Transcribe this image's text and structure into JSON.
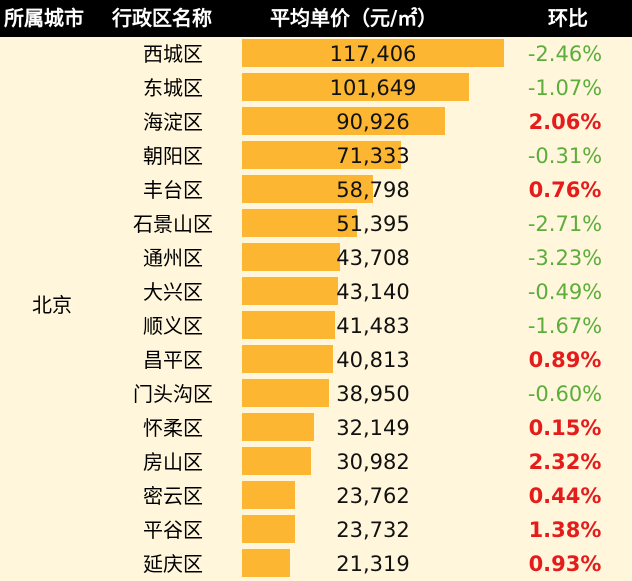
{
  "headers": {
    "city": "所属城市",
    "district": "行政区名称",
    "price": "平均单价（元/㎡）",
    "change": "环比"
  },
  "city": "北京",
  "colors": {
    "bar": "#fcb632",
    "negative": "#5cad3c",
    "positive": "#e51c1c",
    "header_bg": "#000000",
    "page_bg": "#fff6db"
  },
  "bar_max_value": 117406,
  "rows": [
    {
      "district": "西城区",
      "price_value": 117406,
      "price": "117,406",
      "change": "-2.46%",
      "change_value": -2.46
    },
    {
      "district": "东城区",
      "price_value": 101649,
      "price": "101,649",
      "change": "-1.07%",
      "change_value": -1.07
    },
    {
      "district": "海淀区",
      "price_value": 90926,
      "price": "90,926",
      "change": "2.06%",
      "change_value": 2.06
    },
    {
      "district": "朝阳区",
      "price_value": 71333,
      "price": "71,333",
      "change": "-0.31%",
      "change_value": -0.31
    },
    {
      "district": "丰台区",
      "price_value": 58798,
      "price": "58,798",
      "change": "0.76%",
      "change_value": 0.76
    },
    {
      "district": "石景山区",
      "price_value": 51395,
      "price": "51,395",
      "change": "-2.71%",
      "change_value": -2.71
    },
    {
      "district": "通州区",
      "price_value": 43708,
      "price": "43,708",
      "change": "-3.23%",
      "change_value": -3.23
    },
    {
      "district": "大兴区",
      "price_value": 43140,
      "price": "43,140",
      "change": "-0.49%",
      "change_value": -0.49
    },
    {
      "district": "顺义区",
      "price_value": 41483,
      "price": "41,483",
      "change": "-1.67%",
      "change_value": -1.67
    },
    {
      "district": "昌平区",
      "price_value": 40813,
      "price": "40,813",
      "change": "0.89%",
      "change_value": 0.89
    },
    {
      "district": "门头沟区",
      "price_value": 38950,
      "price": "38,950",
      "change": "-0.60%",
      "change_value": -0.6
    },
    {
      "district": "怀柔区",
      "price_value": 32149,
      "price": "32,149",
      "change": "0.15%",
      "change_value": 0.15
    },
    {
      "district": "房山区",
      "price_value": 30982,
      "price": "30,982",
      "change": "2.32%",
      "change_value": 2.32
    },
    {
      "district": "密云区",
      "price_value": 23762,
      "price": "23,762",
      "change": "0.44%",
      "change_value": 0.44
    },
    {
      "district": "平谷区",
      "price_value": 23732,
      "price": "23,732",
      "change": "1.38%",
      "change_value": 1.38
    },
    {
      "district": "延庆区",
      "price_value": 21319,
      "price": "21,319",
      "change": "0.93%",
      "change_value": 0.93
    }
  ]
}
